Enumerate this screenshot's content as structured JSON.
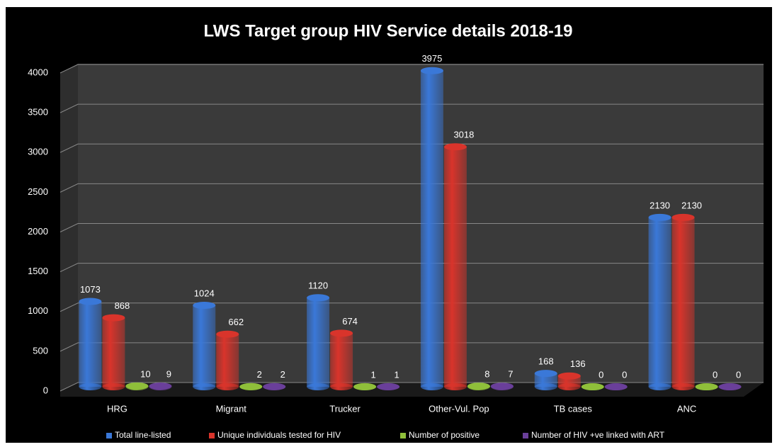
{
  "chart_data": {
    "type": "bar",
    "title": "LWS Target group HIV Service details 2018-19",
    "categories": [
      "HRG",
      "Migrant",
      "Trucker",
      "Other-Vul. Pop",
      "TB cases",
      "ANC"
    ],
    "series": [
      {
        "name": "Total line-listed",
        "color": "#3a78d8",
        "values": [
          1073,
          1024,
          1120,
          3975,
          168,
          2130
        ]
      },
      {
        "name": "Unique individuals tested for HIV",
        "color": "#d9342b",
        "values": [
          868,
          662,
          674,
          3018,
          136,
          2130
        ]
      },
      {
        "name": "Number of positive",
        "color": "#8fbf3a",
        "values": [
          10,
          2,
          1,
          8,
          0,
          0
        ]
      },
      {
        "name": "Number of HIV +ve  linked with ART",
        "color": "#6a3f9a",
        "values": [
          9,
          2,
          1,
          7,
          0,
          0
        ]
      }
    ],
    "ylim": [
      0,
      4000
    ],
    "yticks": [
      0,
      500,
      1000,
      1500,
      2000,
      2500,
      3000,
      3500,
      4000
    ],
    "grid": true,
    "legend": "bottom"
  }
}
